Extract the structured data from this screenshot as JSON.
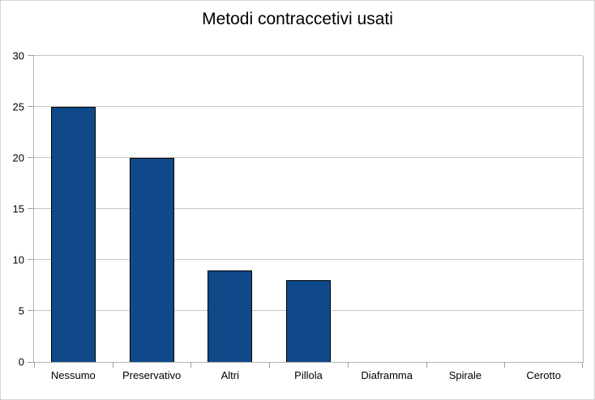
{
  "window": {
    "background": "#ffffff",
    "outer_border": "#d4d4d4"
  },
  "chart_data": {
    "type": "bar",
    "title": "Metodi contraccetivi usati",
    "categories": [
      "Nessumo",
      "Preservativo",
      "Altri",
      "Pillola",
      "Diaframma",
      "Spirale",
      "Cerotto"
    ],
    "values": [
      25,
      20,
      9,
      8,
      0,
      0,
      0
    ],
    "xlabel": "",
    "ylabel": "",
    "ylim": [
      0,
      30
    ],
    "ytick_step": 5,
    "ytick_labels": [
      "0",
      "5",
      "10",
      "15",
      "20",
      "25",
      "30"
    ],
    "grid": true,
    "legend_position": "none",
    "colors": {
      "bar_fill": "#10498a",
      "bar_border": "#000000",
      "grid_line": "#c6c6c6",
      "axis_line": "#b3b3b3",
      "tick_line": "#9e9e9e",
      "text": "#000000",
      "plot_background": "#ffffff"
    }
  }
}
